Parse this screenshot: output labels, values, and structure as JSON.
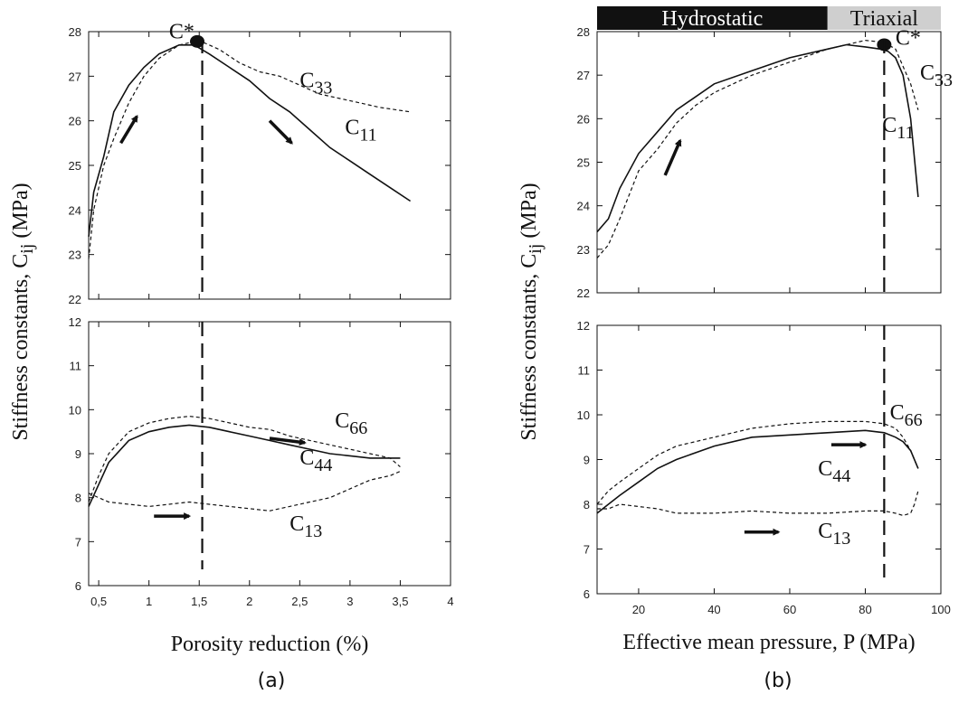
{
  "chart_data": [
    {
      "id": "a",
      "type": "line",
      "caption": "(a)",
      "xlabel": "Porosity reduction (%)",
      "ylabel_top": "Stiffness constants, C",
      "ylabel_sub": "ij",
      "ylabel_end": " (MPa)",
      "xlim": [
        0.4,
        4
      ],
      "xticks": [
        0.5,
        1,
        1.5,
        2,
        2.5,
        3,
        3.5,
        4
      ],
      "xtick_labels": [
        "0,5",
        "1",
        "1,5",
        "2",
        "2,5",
        "3",
        "3,5",
        "4"
      ],
      "top_panel": {
        "ylim": [
          22,
          28
        ],
        "yticks": [
          22,
          23,
          24,
          25,
          26,
          27,
          28
        ],
        "series": [
          {
            "name": "C11",
            "style": "solid",
            "x": [
              0.4,
              0.45,
              0.55,
              0.65,
              0.8,
              0.95,
              1.1,
              1.3,
              1.45,
              1.6,
              1.8,
              2.0,
              2.2,
              2.4,
              2.6,
              2.8,
              3.0,
              3.2,
              3.4,
              3.6
            ],
            "y": [
              23.4,
              24.4,
              25.2,
              26.2,
              26.8,
              27.2,
              27.5,
              27.7,
              27.7,
              27.5,
              27.2,
              26.9,
              26.5,
              26.2,
              25.8,
              25.4,
              25.1,
              24.8,
              24.5,
              24.2
            ]
          },
          {
            "name": "C33",
            "style": "dashed",
            "x": [
              0.4,
              0.45,
              0.55,
              0.65,
              0.8,
              0.95,
              1.1,
              1.3,
              1.5,
              1.7,
              1.9,
              2.1,
              2.3,
              2.5,
              2.7,
              2.9,
              3.1,
              3.3,
              3.6
            ],
            "y": [
              22.9,
              24.0,
              25.0,
              25.6,
              26.4,
              27.0,
              27.4,
              27.7,
              27.8,
              27.6,
              27.3,
              27.1,
              27.0,
              26.8,
              26.6,
              26.5,
              26.4,
              26.3,
              26.2
            ]
          }
        ],
        "labels": [
          {
            "name": "C",
            "sub": "33",
            "x": 2.5,
            "y": 26.75
          },
          {
            "name": "C",
            "sub": "11",
            "x": 2.95,
            "y": 25.7
          },
          {
            "name": "C*",
            "sub": "",
            "x": 1.2,
            "y": 27.85
          }
        ],
        "marker": {
          "x": 1.48,
          "y": 27.78
        }
      },
      "bottom_panel": {
        "ylim": [
          6,
          12
        ],
        "yticks": [
          6,
          7,
          8,
          9,
          10,
          11,
          12
        ],
        "series": [
          {
            "name": "C66",
            "style": "dashed",
            "x": [
              0.4,
              0.5,
              0.6,
              0.8,
              1.0,
              1.2,
              1.4,
              1.6,
              1.8,
              2.0,
              2.2,
              2.4,
              2.6,
              2.8,
              3.0,
              3.2,
              3.4,
              3.5
            ],
            "y": [
              7.9,
              8.5,
              9.0,
              9.5,
              9.7,
              9.8,
              9.85,
              9.8,
              9.7,
              9.6,
              9.55,
              9.4,
              9.3,
              9.2,
              9.1,
              9.0,
              8.9,
              8.7
            ]
          },
          {
            "name": "C44",
            "style": "solid",
            "x": [
              0.4,
              0.5,
              0.6,
              0.8,
              1.0,
              1.2,
              1.4,
              1.6,
              1.8,
              2.0,
              2.2,
              2.4,
              2.6,
              2.8,
              3.0,
              3.2,
              3.4,
              3.5
            ],
            "y": [
              7.8,
              8.3,
              8.8,
              9.3,
              9.5,
              9.6,
              9.65,
              9.6,
              9.5,
              9.4,
              9.3,
              9.2,
              9.1,
              9.0,
              8.95,
              8.9,
              8.9,
              8.9
            ]
          },
          {
            "name": "C13",
            "style": "dashed",
            "x": [
              0.4,
              0.5,
              0.6,
              0.8,
              1.0,
              1.2,
              1.4,
              1.6,
              1.8,
              2.0,
              2.2,
              2.4,
              2.6,
              2.8,
              3.0,
              3.2,
              3.4,
              3.5
            ],
            "y": [
              8.1,
              8.0,
              7.9,
              7.85,
              7.8,
              7.85,
              7.9,
              7.85,
              7.8,
              7.75,
              7.7,
              7.8,
              7.9,
              8.0,
              8.2,
              8.4,
              8.5,
              8.6
            ]
          }
        ],
        "labels": [
          {
            "name": "C",
            "sub": "66",
            "x": 2.85,
            "y": 9.6
          },
          {
            "name": "C",
            "sub": "44",
            "x": 2.5,
            "y": 8.75
          },
          {
            "name": "C",
            "sub": "13",
            "x": 2.4,
            "y": 7.25
          }
        ]
      },
      "vline_x": 1.53,
      "arrows_top": [
        [
          0.72,
          25.5,
          0.88,
          26.1
        ],
        [
          2.2,
          26.0,
          2.42,
          25.5
        ]
      ],
      "arrows_bottom": [
        [
          1.05,
          7.58,
          1.4,
          7.58
        ],
        [
          2.2,
          9.35,
          2.55,
          9.25
        ]
      ]
    },
    {
      "id": "b",
      "type": "line",
      "caption": "(b)",
      "xlabel": "Effective mean pressure, P (MPa)",
      "ylabel_top": "Stiffness constants, C",
      "ylabel_sub": "ij",
      "ylabel_end": " (MPa)",
      "xlim": [
        9,
        100
      ],
      "xticks": [
        20,
        40,
        60,
        80,
        100
      ],
      "xtick_labels": [
        "20",
        "40",
        "60",
        "80",
        "100"
      ],
      "banner": {
        "left_text": "Hydrostatic",
        "right_text": "Triaxial",
        "split_x": 70
      },
      "top_panel": {
        "ylim": [
          22,
          28
        ],
        "yticks": [
          22,
          23,
          24,
          25,
          26,
          27,
          28
        ],
        "series": [
          {
            "name": "C11",
            "style": "solid",
            "x": [
              9,
              12,
              15,
              20,
              25,
              30,
              35,
              40,
              50,
              60,
              70,
              75,
              80,
              84,
              86,
              88,
              90,
              92,
              94
            ],
            "y": [
              23.4,
              23.7,
              24.4,
              25.2,
              25.7,
              26.2,
              26.5,
              26.8,
              27.1,
              27.4,
              27.6,
              27.7,
              27.65,
              27.6,
              27.55,
              27.4,
              27.0,
              26.0,
              24.2
            ]
          },
          {
            "name": "C33",
            "style": "dashed",
            "x": [
              9,
              12,
              15,
              20,
              25,
              30,
              35,
              40,
              50,
              60,
              70,
              75,
              80,
              85,
              88,
              90,
              92,
              94
            ],
            "y": [
              22.8,
              23.1,
              23.7,
              24.8,
              25.3,
              25.9,
              26.3,
              26.6,
              27.0,
              27.3,
              27.6,
              27.7,
              27.8,
              27.75,
              27.6,
              27.2,
              26.8,
              26.2
            ]
          }
        ],
        "labels": [
          {
            "name": "C",
            "sub": "33",
            "x": 94.5,
            "y": 26.9
          },
          {
            "name": "C",
            "sub": "11",
            "x": 84.5,
            "y": 25.7
          },
          {
            "name": "C*",
            "sub": "",
            "x": 88,
            "y": 27.7
          }
        ],
        "marker": {
          "x": 85,
          "y": 27.7
        }
      },
      "bottom_panel": {
        "ylim": [
          6,
          12
        ],
        "yticks": [
          6,
          7,
          8,
          9,
          10,
          11,
          12
        ],
        "series": [
          {
            "name": "C66",
            "style": "dashed",
            "x": [
              9,
              12,
              15,
              20,
              25,
              30,
              40,
              50,
              60,
              70,
              80,
              85,
              88,
              90,
              92,
              94
            ],
            "y": [
              8.0,
              8.3,
              8.5,
              8.8,
              9.1,
              9.3,
              9.5,
              9.7,
              9.8,
              9.85,
              9.85,
              9.8,
              9.7,
              9.5,
              9.2,
              8.8
            ]
          },
          {
            "name": "C44",
            "style": "solid",
            "x": [
              9,
              12,
              15,
              20,
              25,
              30,
              40,
              50,
              60,
              70,
              80,
              85,
              88,
              90,
              92,
              94
            ],
            "y": [
              7.8,
              8.0,
              8.2,
              8.5,
              8.8,
              9.0,
              9.3,
              9.5,
              9.55,
              9.6,
              9.65,
              9.6,
              9.5,
              9.4,
              9.2,
              8.8
            ]
          },
          {
            "name": "C13",
            "style": "dashed",
            "x": [
              9,
              12,
              15,
              20,
              25,
              30,
              40,
              50,
              60,
              70,
              80,
              85,
              88,
              90,
              92,
              93,
              94
            ],
            "y": [
              7.9,
              7.9,
              8.0,
              7.95,
              7.9,
              7.8,
              7.8,
              7.85,
              7.8,
              7.8,
              7.85,
              7.85,
              7.8,
              7.75,
              7.8,
              8.0,
              8.3
            ]
          }
        ],
        "labels": [
          {
            "name": "C",
            "sub": "66",
            "x": 86.5,
            "y": 9.9
          },
          {
            "name": "C",
            "sub": "44",
            "x": 67.5,
            "y": 8.65
          },
          {
            "name": "C",
            "sub": "13",
            "x": 67.5,
            "y": 7.25
          }
        ]
      },
      "vline_x": 85,
      "arrows_top": [
        [
          27,
          24.7,
          31,
          25.5
        ]
      ],
      "arrows_bottom": [
        [
          71,
          9.33,
          80,
          9.33
        ],
        [
          48,
          7.38,
          57,
          7.38
        ]
      ]
    }
  ]
}
